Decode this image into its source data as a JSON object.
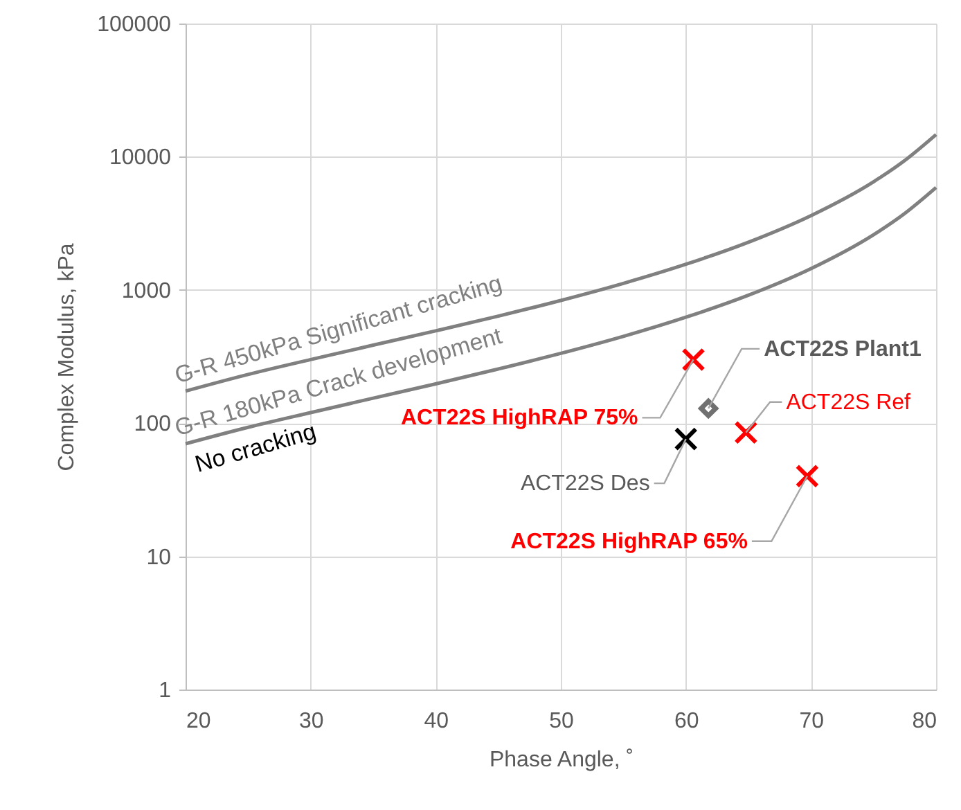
{
  "chart_data": {
    "type": "scatter",
    "xlabel": "Phase Angle, ˚",
    "ylabel": "Complex Modulus, kPa",
    "xlim": [
      20,
      80
    ],
    "xticks": [
      20,
      30,
      40,
      50,
      60,
      70,
      80
    ],
    "ylim": [
      1,
      100000
    ],
    "yticks": [
      1,
      10,
      100,
      1000,
      10000,
      100000
    ],
    "log": "y",
    "grid": true,
    "annotations": [
      "No cracking"
    ],
    "series": [
      {
        "name": "G-R 450kPa  Significant cracking",
        "type": "line",
        "marker": "none",
        "color": "#808080",
        "x": [
          20,
          25,
          30,
          35,
          40,
          45,
          50,
          55,
          60,
          65,
          70,
          75,
          77.5,
          80
        ],
        "values": [
          174,
          232,
          300,
          385,
          493,
          636,
          834,
          1120,
          1559,
          2283,
          3616,
          6489,
          9385,
          14680
        ]
      },
      {
        "name": "G-R 180kPa  Crack development",
        "type": "line",
        "marker": "none",
        "color": "#808080",
        "x": [
          20,
          25,
          30,
          35,
          40,
          45,
          50,
          55,
          60,
          65,
          70,
          75,
          77.5,
          80
        ],
        "values": [
          70,
          93,
          120,
          154,
          197,
          255,
          334,
          448,
          624,
          913,
          1446,
          2596,
          3754,
          5872
        ]
      },
      {
        "name": "ACT22S HighRAP 75%",
        "marker": "cross",
        "color": "#ff0000",
        "x": [
          60.6
        ],
        "values": [
          300
        ]
      },
      {
        "name": "ACT22S Plant1",
        "marker": "diamond",
        "color": "#707070",
        "x": [
          61.8
        ],
        "values": [
          129
        ]
      },
      {
        "name": "ACT22S Des",
        "marker": "cross",
        "color": "#000000",
        "x": [
          60.0
        ],
        "values": [
          76
        ]
      },
      {
        "name": "ACT22S Ref",
        "marker": "cross",
        "color": "#ff0000",
        "x": [
          64.8
        ],
        "values": [
          85
        ]
      },
      {
        "name": "ACT22S HighRAP 65%",
        "marker": "cross",
        "color": "#ff0000",
        "x": [
          69.7
        ],
        "values": [
          40
        ]
      }
    ]
  }
}
